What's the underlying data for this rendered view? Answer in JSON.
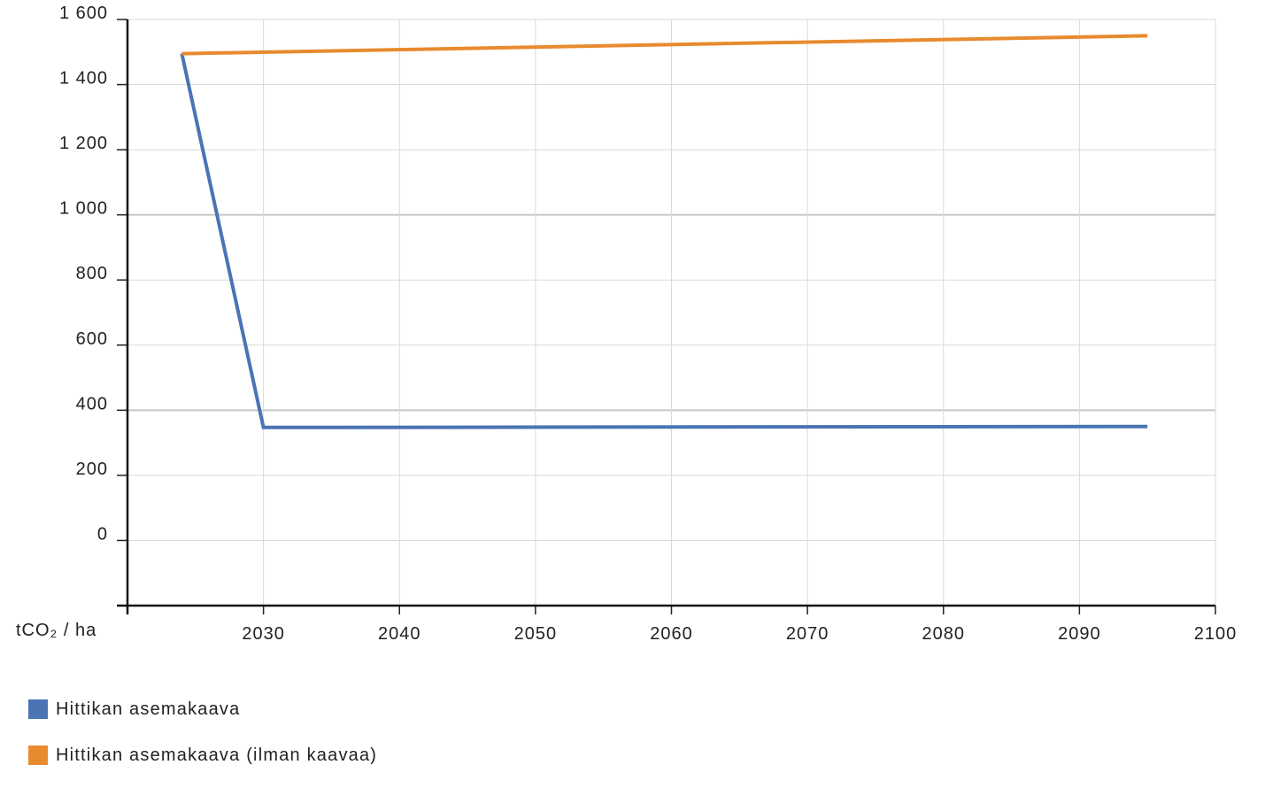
{
  "chart_data": {
    "type": "line",
    "title": "",
    "xlabel": "",
    "ylabel": "tCO₂ / ha",
    "xlim": [
      2020,
      2100
    ],
    "ylim": [
      -200,
      1600
    ],
    "x_ticks": [
      2030,
      2040,
      2050,
      2060,
      2070,
      2080,
      2090,
      2100
    ],
    "y_ticks": [
      0,
      200,
      400,
      600,
      800,
      1000,
      1200,
      1400,
      1600
    ],
    "x_tick_labels": [
      "2030",
      "2040",
      "2050",
      "2060",
      "2070",
      "2080",
      "2090",
      "2100"
    ],
    "y_tick_labels": [
      "0",
      "200",
      "400",
      "600",
      "800",
      "1 000",
      "1 200",
      "1 400",
      "1 600"
    ],
    "grid": true,
    "legend_position": "bottom-left",
    "series": [
      {
        "name": "Hittikan asemakaava",
        "color": "#4a74b4",
        "points": [
          [
            2024,
            1495
          ],
          [
            2030,
            347
          ],
          [
            2095,
            350
          ]
        ]
      },
      {
        "name": "Hittikan asemakaava (ilman kaavaa)",
        "color": "#e88a2e",
        "points": [
          [
            2024,
            1495
          ],
          [
            2095,
            1550
          ]
        ]
      }
    ]
  }
}
